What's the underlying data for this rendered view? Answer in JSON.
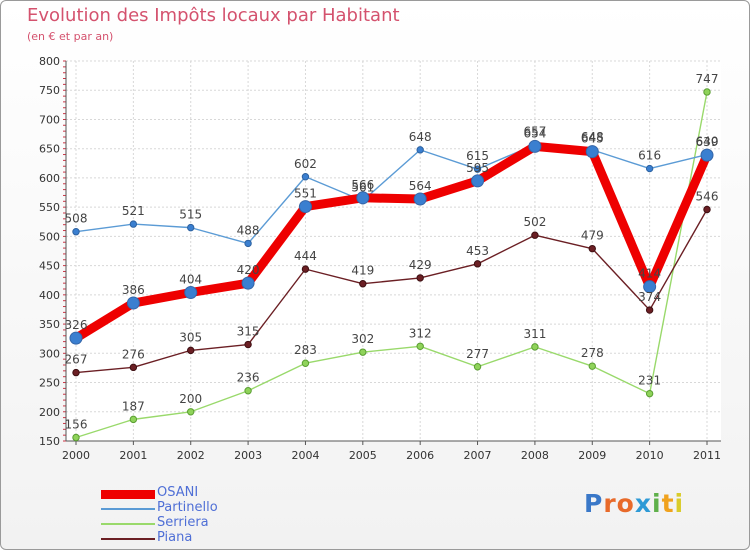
{
  "title": "Evolution des Impôts locaux par Habitant",
  "subtitle": "(en € et par an)",
  "logo_text": "Proxiti",
  "chart_data": {
    "type": "line",
    "title": "Evolution des Impôts locaux par Habitant",
    "subtitle": "(en € et par an)",
    "xlabel": "",
    "ylabel": "",
    "x": [
      "2000",
      "2001",
      "2002",
      "2003",
      "2004",
      "2005",
      "2006",
      "2007",
      "2008",
      "2009",
      "2010",
      "2011"
    ],
    "ylim": [
      150,
      800
    ],
    "yticks": [
      150,
      200,
      250,
      300,
      350,
      400,
      450,
      500,
      550,
      600,
      650,
      700,
      750,
      800
    ],
    "grid": true,
    "legend_position": "bottom-left",
    "series": [
      {
        "name": "OSANI",
        "color": "#ee0000",
        "values": [
          326,
          386,
          404,
          420,
          551,
          566,
          564,
          595,
          654,
          645,
          414,
          639
        ],
        "labels": [
          "326",
          "386",
          "404",
          "420",
          "551",
          "566",
          "564",
          "595",
          "654",
          "645",
          "414",
          "639"
        ]
      },
      {
        "name": "Partinello",
        "color": "#5b9bd5",
        "values": [
          508,
          521,
          515,
          488,
          602,
          561,
          648,
          615,
          657,
          648,
          616,
          640
        ],
        "labels": [
          "508",
          "521",
          "515",
          "488",
          "602",
          "561",
          "648",
          "615",
          "657",
          "648",
          "616",
          "640"
        ]
      },
      {
        "name": "Serriera",
        "color": "#99d96b",
        "values": [
          156,
          187,
          200,
          236,
          283,
          302,
          312,
          277,
          311,
          278,
          231,
          747
        ],
        "labels": [
          "156",
          "187",
          "200",
          "236",
          "283",
          "302",
          "312",
          "277",
          "311",
          "278",
          "231",
          "747"
        ]
      },
      {
        "name": "Piana",
        "color": "#6b1f24",
        "values": [
          267,
          276,
          305,
          315,
          444,
          419,
          429,
          453,
          502,
          479,
          374,
          546
        ],
        "labels": [
          "267",
          "276",
          "305",
          "315",
          "444",
          "419",
          "429",
          "453",
          "502",
          "479",
          "374",
          "546"
        ]
      }
    ]
  }
}
